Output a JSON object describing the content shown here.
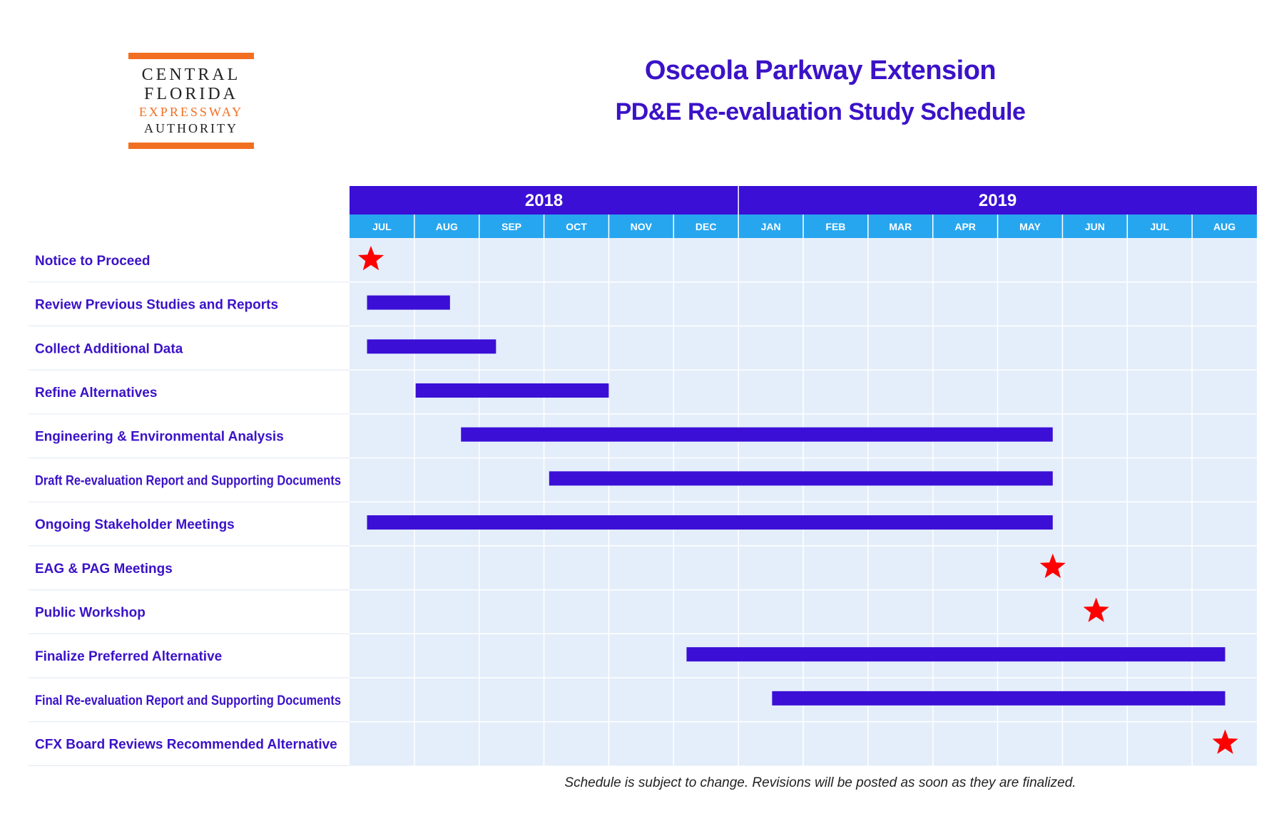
{
  "logo": {
    "line1": "CENTRAL",
    "line2": "FLORIDA",
    "line3": "EXPRESSWAY",
    "line4": "AUTHORITY",
    "accent_color": "#f26f21"
  },
  "title": {
    "main": "Osceola Parkway Extension",
    "sub": "PD&E Re-evaluation Study Schedule"
  },
  "footnote": "Schedule is subject to change. Revisions will be posted as soon as they are finalized.",
  "colors": {
    "title": "#3b12c8",
    "year_header": "#3b0fd6",
    "month_header": "#27a6f0",
    "chart_bg": "#e4eefa",
    "bar": "#3b0fd6",
    "milestone": "#ff0000",
    "task_label": "#3b12c8"
  },
  "chart_data": {
    "type": "gantt",
    "x_unit": "month",
    "years": [
      {
        "label": "2018",
        "months": 6
      },
      {
        "label": "2019",
        "months": 8
      }
    ],
    "months": [
      "JUL",
      "AUG",
      "SEP",
      "OCT",
      "NOV",
      "DEC",
      "JAN",
      "FEB",
      "MAR",
      "APR",
      "MAY",
      "JUN",
      "JUL",
      "AUG"
    ],
    "tasks": [
      {
        "label": "Notice to Proceed",
        "milestone": 0.33
      },
      {
        "label": "Review Previous Studies and Reports",
        "start": 0.27,
        "end": 1.55
      },
      {
        "label": "Collect Additional Data",
        "start": 0.27,
        "end": 2.26
      },
      {
        "label": "Refine Alternatives",
        "start": 1.02,
        "end": 4.0
      },
      {
        "label": "Engineering & Environmental Analysis",
        "start": 1.72,
        "end": 10.85
      },
      {
        "label": "Draft Re-evaluation Report and Supporting Documents",
        "start": 3.08,
        "end": 10.85
      },
      {
        "label": "Ongoing Stakeholder Meetings",
        "start": 0.27,
        "end": 10.85
      },
      {
        "label": "EAG & PAG Meetings",
        "milestone": 10.85
      },
      {
        "label": "Public Workshop",
        "milestone": 11.52
      },
      {
        "label": "Finalize Preferred Alternative",
        "start": 5.2,
        "end": 13.51
      },
      {
        "label": "Final Re-evaluation Report and Supporting Documents",
        "start": 6.52,
        "end": 13.51
      },
      {
        "label": "CFX Board Reviews Recommended Alternative",
        "milestone": 13.51
      }
    ]
  }
}
